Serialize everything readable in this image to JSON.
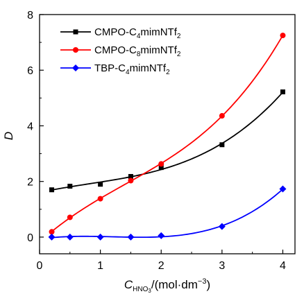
{
  "chart_data": {
    "type": "scatter",
    "xlim": [
      0,
      4.2
    ],
    "ylim": [
      -0.6,
      8
    ],
    "xticks": [
      "0",
      "1",
      "2",
      "3",
      "4"
    ],
    "yticks": [
      "0",
      "2",
      "4",
      "6",
      "8"
    ],
    "xlabel": {
      "main": "C",
      "sub1": "HNO",
      "sub2": "3",
      "rest": "/(mol·dm",
      "sup": "−3",
      "close": ")"
    },
    "ylabel": "D",
    "legend_position": "top-left",
    "grid": false,
    "series": [
      {
        "name": {
          "pre": "CMPO-C",
          "sub": "4",
          "post": "mimNTf",
          "sub2": "2"
        },
        "color": "#000000",
        "marker": "square",
        "x": [
          0.2,
          0.5,
          1.0,
          1.5,
          2.0,
          3.0,
          4.0
        ],
        "y": [
          1.7,
          1.83,
          1.9,
          2.18,
          2.5,
          3.32,
          5.22
        ]
      },
      {
        "name": {
          "pre": "CMPO-C",
          "sub": "8",
          "post": "mimNTf",
          "sub2": "2"
        },
        "color": "#ff0000",
        "marker": "circle",
        "x": [
          0.2,
          0.5,
          1.0,
          1.5,
          2.0,
          3.0,
          4.0
        ],
        "y": [
          0.19,
          0.71,
          1.38,
          2.03,
          2.63,
          4.36,
          7.25
        ]
      },
      {
        "name": {
          "pre": "TBP-C",
          "sub": "4",
          "post": "mimNTf",
          "sub2": "2"
        },
        "color": "#0000ff",
        "marker": "diamond",
        "x": [
          0.2,
          0.5,
          1.0,
          1.5,
          2.0,
          3.0,
          4.0
        ],
        "y": [
          0.0,
          0.0,
          0.0,
          0.0,
          0.05,
          0.38,
          1.73
        ]
      }
    ]
  }
}
